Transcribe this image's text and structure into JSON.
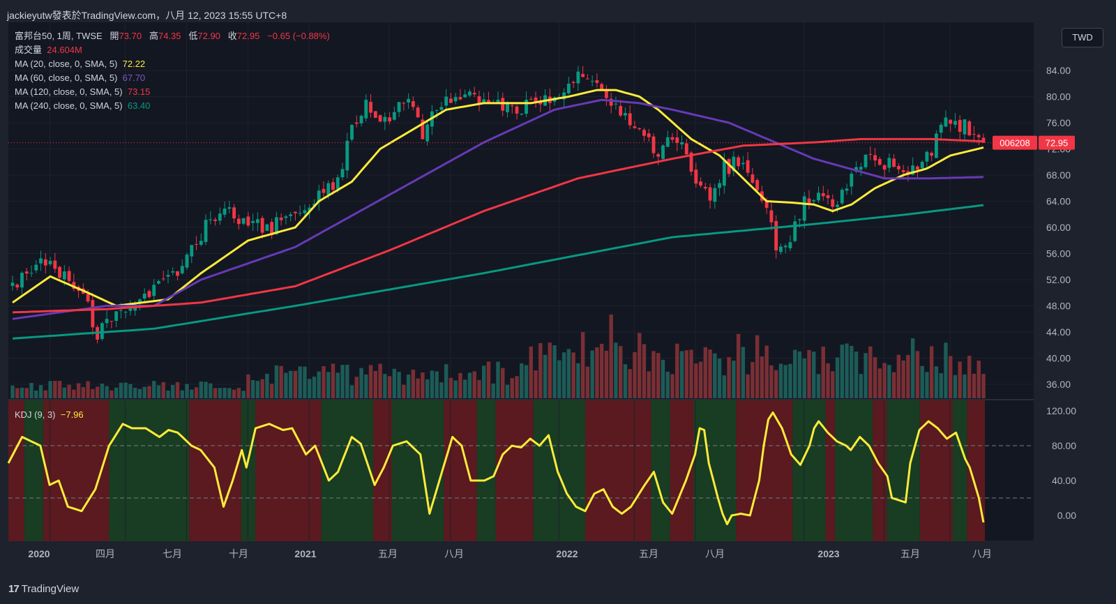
{
  "header": {
    "publish_line": "jackieyutw發表於TradingView.com，八月 12, 2023 15:55 UTC+8"
  },
  "symbol_line": {
    "name": "富邦台50, 1周, TWSE",
    "open_label": "開",
    "open": "73.70",
    "high_label": "高",
    "high": "74.35",
    "low_label": "低",
    "low": "72.90",
    "close_label": "收",
    "close": "72.95",
    "change": "−0.65 (−0.88%)"
  },
  "volume_line": {
    "label": "成交量",
    "value": "24.604M"
  },
  "ma_lines": [
    {
      "label": "MA (20, close, 0, SMA, 5)",
      "value": "72.22",
      "color": "#ffeb3b"
    },
    {
      "label": "MA (60, close, 0, SMA, 5)",
      "value": "67.70",
      "color": "#673ab7"
    },
    {
      "label": "MA (120, close, 0, SMA, 5)",
      "value": "73.15",
      "color": "#f23645"
    },
    {
      "label": "MA (240, close, 0, SMA, 5)",
      "value": "63.40",
      "color": "#089981"
    }
  ],
  "kdj": {
    "label": "KDJ (9, 3)",
    "value": "−7.96"
  },
  "currency": "TWD",
  "price_tag": {
    "ticker": "006208",
    "price": "72.95"
  },
  "brand": "TradingView",
  "colors": {
    "up": "#089981",
    "down": "#f23645",
    "ma20": "#ffeb3b",
    "ma60": "#673ab7",
    "ma120": "#f23645",
    "ma240": "#089981",
    "kdj": "#ffeb3b"
  },
  "chart_data": [
    {
      "type": "candlestick",
      "title": "富邦台50, 1周, TWSE",
      "x_tick_labels": [
        "2020",
        "四月",
        "七月",
        "十月",
        "2021",
        "五月",
        "八月",
        "2022",
        "五月",
        "八月",
        "2023",
        "五月",
        "八月"
      ],
      "y_tick_labels": [
        "36.00",
        "40.00",
        "44.00",
        "48.00",
        "52.00",
        "56.00",
        "60.00",
        "64.00",
        "68.00",
        "72.00",
        "76.00",
        "80.00",
        "84.00"
      ],
      "ylim": [
        34.5,
        88
      ],
      "close_anchors": [
        [
          0,
          51.2
        ],
        [
          3,
          53.5
        ],
        [
          8,
          54.5
        ],
        [
          13,
          51.5
        ],
        [
          16,
          47.5
        ],
        [
          18,
          44
        ],
        [
          21,
          46.5
        ],
        [
          27,
          48.5
        ],
        [
          33,
          52
        ],
        [
          37,
          55.5
        ],
        [
          41,
          60
        ],
        [
          45,
          62.5
        ],
        [
          49,
          61
        ],
        [
          55,
          60
        ],
        [
          60,
          62
        ],
        [
          64,
          64.5
        ],
        [
          69,
          67.5
        ],
        [
          72,
          75
        ],
        [
          75,
          79.5
        ],
        [
          78,
          76
        ],
        [
          82,
          78
        ],
        [
          84,
          80.5
        ],
        [
          87,
          74
        ],
        [
          89,
          78
        ],
        [
          92,
          79
        ],
        [
          96,
          80
        ],
        [
          100,
          78.5
        ],
        [
          104,
          79
        ],
        [
          108,
          78
        ],
        [
          112,
          79.5
        ],
        [
          116,
          80
        ],
        [
          118,
          82
        ],
        [
          120,
          84.5
        ],
        [
          123,
          83
        ],
        [
          127,
          78.5
        ],
        [
          130,
          77
        ],
        [
          133,
          74
        ],
        [
          137,
          72
        ],
        [
          140,
          73.5
        ],
        [
          143,
          71
        ],
        [
          146,
          66
        ],
        [
          148,
          65
        ],
        [
          151,
          69
        ],
        [
          154,
          70
        ],
        [
          157,
          66
        ],
        [
          160,
          62
        ],
        [
          162,
          57.5
        ],
        [
          164,
          56
        ],
        [
          166,
          60.5
        ],
        [
          168,
          64
        ],
        [
          171,
          65.5
        ],
        [
          174,
          62.5
        ],
        [
          177,
          66
        ],
        [
          180,
          70
        ],
        [
          184,
          70
        ],
        [
          189,
          69
        ],
        [
          192,
          68.5
        ],
        [
          195,
          72
        ],
        [
          198,
          76
        ],
        [
          202,
          75.5
        ],
        [
          204,
          74
        ],
        [
          206,
          73.7
        ]
      ],
      "last_candle": {
        "open": 73.7,
        "high": 74.35,
        "low": 72.9,
        "close": 72.95
      },
      "series": [
        {
          "name": "MA (20, close, 0, SMA, 5)",
          "last": 72.22,
          "anchors": [
            [
              0,
              48.5
            ],
            [
              8,
              52.5
            ],
            [
              16,
              50
            ],
            [
              22,
              48
            ],
            [
              33,
              49
            ],
            [
              40,
              53
            ],
            [
              50,
              58
            ],
            [
              60,
              60
            ],
            [
              65,
              64
            ],
            [
              72,
              67
            ],
            [
              78,
              72
            ],
            [
              85,
              75
            ],
            [
              92,
              78
            ],
            [
              100,
              79
            ],
            [
              110,
              79
            ],
            [
              118,
              80
            ],
            [
              124,
              81
            ],
            [
              128,
              81
            ],
            [
              133,
              80
            ],
            [
              137,
              78
            ],
            [
              144,
              73.5
            ],
            [
              150,
              71
            ],
            [
              155,
              67.5
            ],
            [
              160,
              64
            ],
            [
              165,
              63.8
            ],
            [
              170,
              63.5
            ],
            [
              174,
              62.5
            ],
            [
              178,
              63.5
            ],
            [
              183,
              66
            ],
            [
              189,
              68
            ],
            [
              194,
              69
            ],
            [
              199,
              71
            ],
            [
              206,
              72.2
            ]
          ]
        },
        {
          "name": "MA (60, close, 0, SMA, 5)",
          "last": 67.7,
          "anchors": [
            [
              0,
              46
            ],
            [
              20,
              48
            ],
            [
              30,
              48
            ],
            [
              40,
              52
            ],
            [
              60,
              57
            ],
            [
              80,
              65
            ],
            [
              100,
              73
            ],
            [
              115,
              78
            ],
            [
              125,
              79.5
            ],
            [
              133,
              79
            ],
            [
              140,
              78
            ],
            [
              152,
              76
            ],
            [
              170,
              70.5
            ],
            [
              185,
              67.5
            ],
            [
              195,
              67.5
            ],
            [
              206,
              67.7
            ]
          ]
        },
        {
          "name": "MA (120, close, 0, SMA, 5)",
          "last": 73.15,
          "anchors": [
            [
              0,
              47
            ],
            [
              20,
              47.5
            ],
            [
              40,
              48.5
            ],
            [
              60,
              51
            ],
            [
              80,
              56.5
            ],
            [
              100,
              62.5
            ],
            [
              120,
              67.5
            ],
            [
              140,
              70.5
            ],
            [
              155,
              72.5
            ],
            [
              170,
              73
            ],
            [
              180,
              73.5
            ],
            [
              195,
              73.5
            ],
            [
              206,
              73.15
            ]
          ]
        },
        {
          "name": "MA (240, close, 0, SMA, 5)",
          "last": 63.4,
          "anchors": [
            [
              0,
              43
            ],
            [
              30,
              44.5
            ],
            [
              60,
              48
            ],
            [
              100,
              53
            ],
            [
              140,
              58.5
            ],
            [
              170,
              60.5
            ],
            [
              190,
              62
            ],
            [
              206,
              63.4
            ]
          ]
        }
      ],
      "volume": {
        "name": "成交量",
        "last": "24.604M"
      },
      "legend_position": "top-left"
    },
    {
      "type": "line",
      "title": "KDJ (9, 3)",
      "y_tick_labels": [
        "0.00",
        "40.00",
        "80.00",
        "120.00"
      ],
      "ylim": [
        -28,
        135
      ],
      "reference_lines": [
        20,
        80
      ],
      "series": [
        {
          "name": "KDJ (9, 3)",
          "last": -7.96,
          "anchors": [
            [
              0,
              60
            ],
            [
              3,
              90
            ],
            [
              7,
              80
            ],
            [
              9,
              35
            ],
            [
              11,
              40
            ],
            [
              13,
              10
            ],
            [
              16,
              5
            ],
            [
              19,
              30
            ],
            [
              22,
              80
            ],
            [
              25,
              105
            ],
            [
              27,
              100
            ],
            [
              30,
              100
            ],
            [
              33,
              90
            ],
            [
              35,
              98
            ],
            [
              37,
              95
            ],
            [
              40,
              80
            ],
            [
              42,
              75
            ],
            [
              45,
              55
            ],
            [
              47,
              10
            ],
            [
              49,
              40
            ],
            [
              51,
              75
            ],
            [
              52,
              55
            ],
            [
              54,
              100
            ],
            [
              57,
              105
            ],
            [
              60,
              98
            ],
            [
              62,
              100
            ],
            [
              65,
              70
            ],
            [
              67,
              80
            ],
            [
              70,
              40
            ],
            [
              72,
              50
            ],
            [
              75,
              90
            ],
            [
              77,
              82
            ],
            [
              80,
              35
            ],
            [
              82,
              55
            ],
            [
              84,
              80
            ],
            [
              87,
              85
            ],
            [
              90,
              70
            ],
            [
              92,
              2
            ],
            [
              95,
              55
            ],
            [
              97,
              90
            ],
            [
              99,
              80
            ],
            [
              101,
              40
            ],
            [
              104,
              40
            ],
            [
              106,
              45
            ],
            [
              108,
              70
            ],
            [
              110,
              80
            ],
            [
              112,
              78
            ],
            [
              114,
              88
            ],
            [
              116,
              80
            ],
            [
              118,
              92
            ],
            [
              120,
              50
            ],
            [
              122,
              25
            ],
            [
              124,
              10
            ],
            [
              126,
              5
            ],
            [
              128,
              25
            ],
            [
              130,
              30
            ],
            [
              132,
              10
            ],
            [
              134,
              2
            ],
            [
              136,
              10
            ],
            [
              139,
              35
            ],
            [
              141,
              50
            ],
            [
              143,
              15
            ],
            [
              145,
              2
            ],
            [
              148,
              40
            ],
            [
              150,
              70
            ],
            [
              151,
              100
            ],
            [
              152,
              98
            ],
            [
              153,
              60
            ],
            [
              155,
              20
            ],
            [
              156,
              2
            ],
            [
              157,
              -10
            ],
            [
              158,
              0
            ],
            [
              160,
              2
            ],
            [
              162,
              0
            ],
            [
              164,
              40
            ],
            [
              165,
              80
            ],
            [
              166,
              110
            ],
            [
              167,
              118
            ],
            [
              169,
              100
            ],
            [
              171,
              70
            ],
            [
              173,
              58
            ],
            [
              175,
              80
            ],
            [
              176,
              100
            ],
            [
              177,
              108
            ],
            [
              179,
              95
            ],
            [
              181,
              85
            ],
            [
              183,
              80
            ],
            [
              184,
              75
            ],
            [
              186,
              90
            ],
            [
              188,
              80
            ],
            [
              190,
              60
            ],
            [
              192,
              45
            ],
            [
              193,
              20
            ],
            [
              196,
              15
            ],
            [
              197,
              60
            ],
            [
              199,
              98
            ],
            [
              201,
              108
            ],
            [
              203,
              100
            ],
            [
              205,
              88
            ],
            [
              207,
              95
            ],
            [
              209,
              65
            ],
            [
              210,
              55
            ],
            [
              212,
              20
            ],
            [
              213,
              -7.96
            ]
          ]
        }
      ]
    }
  ]
}
